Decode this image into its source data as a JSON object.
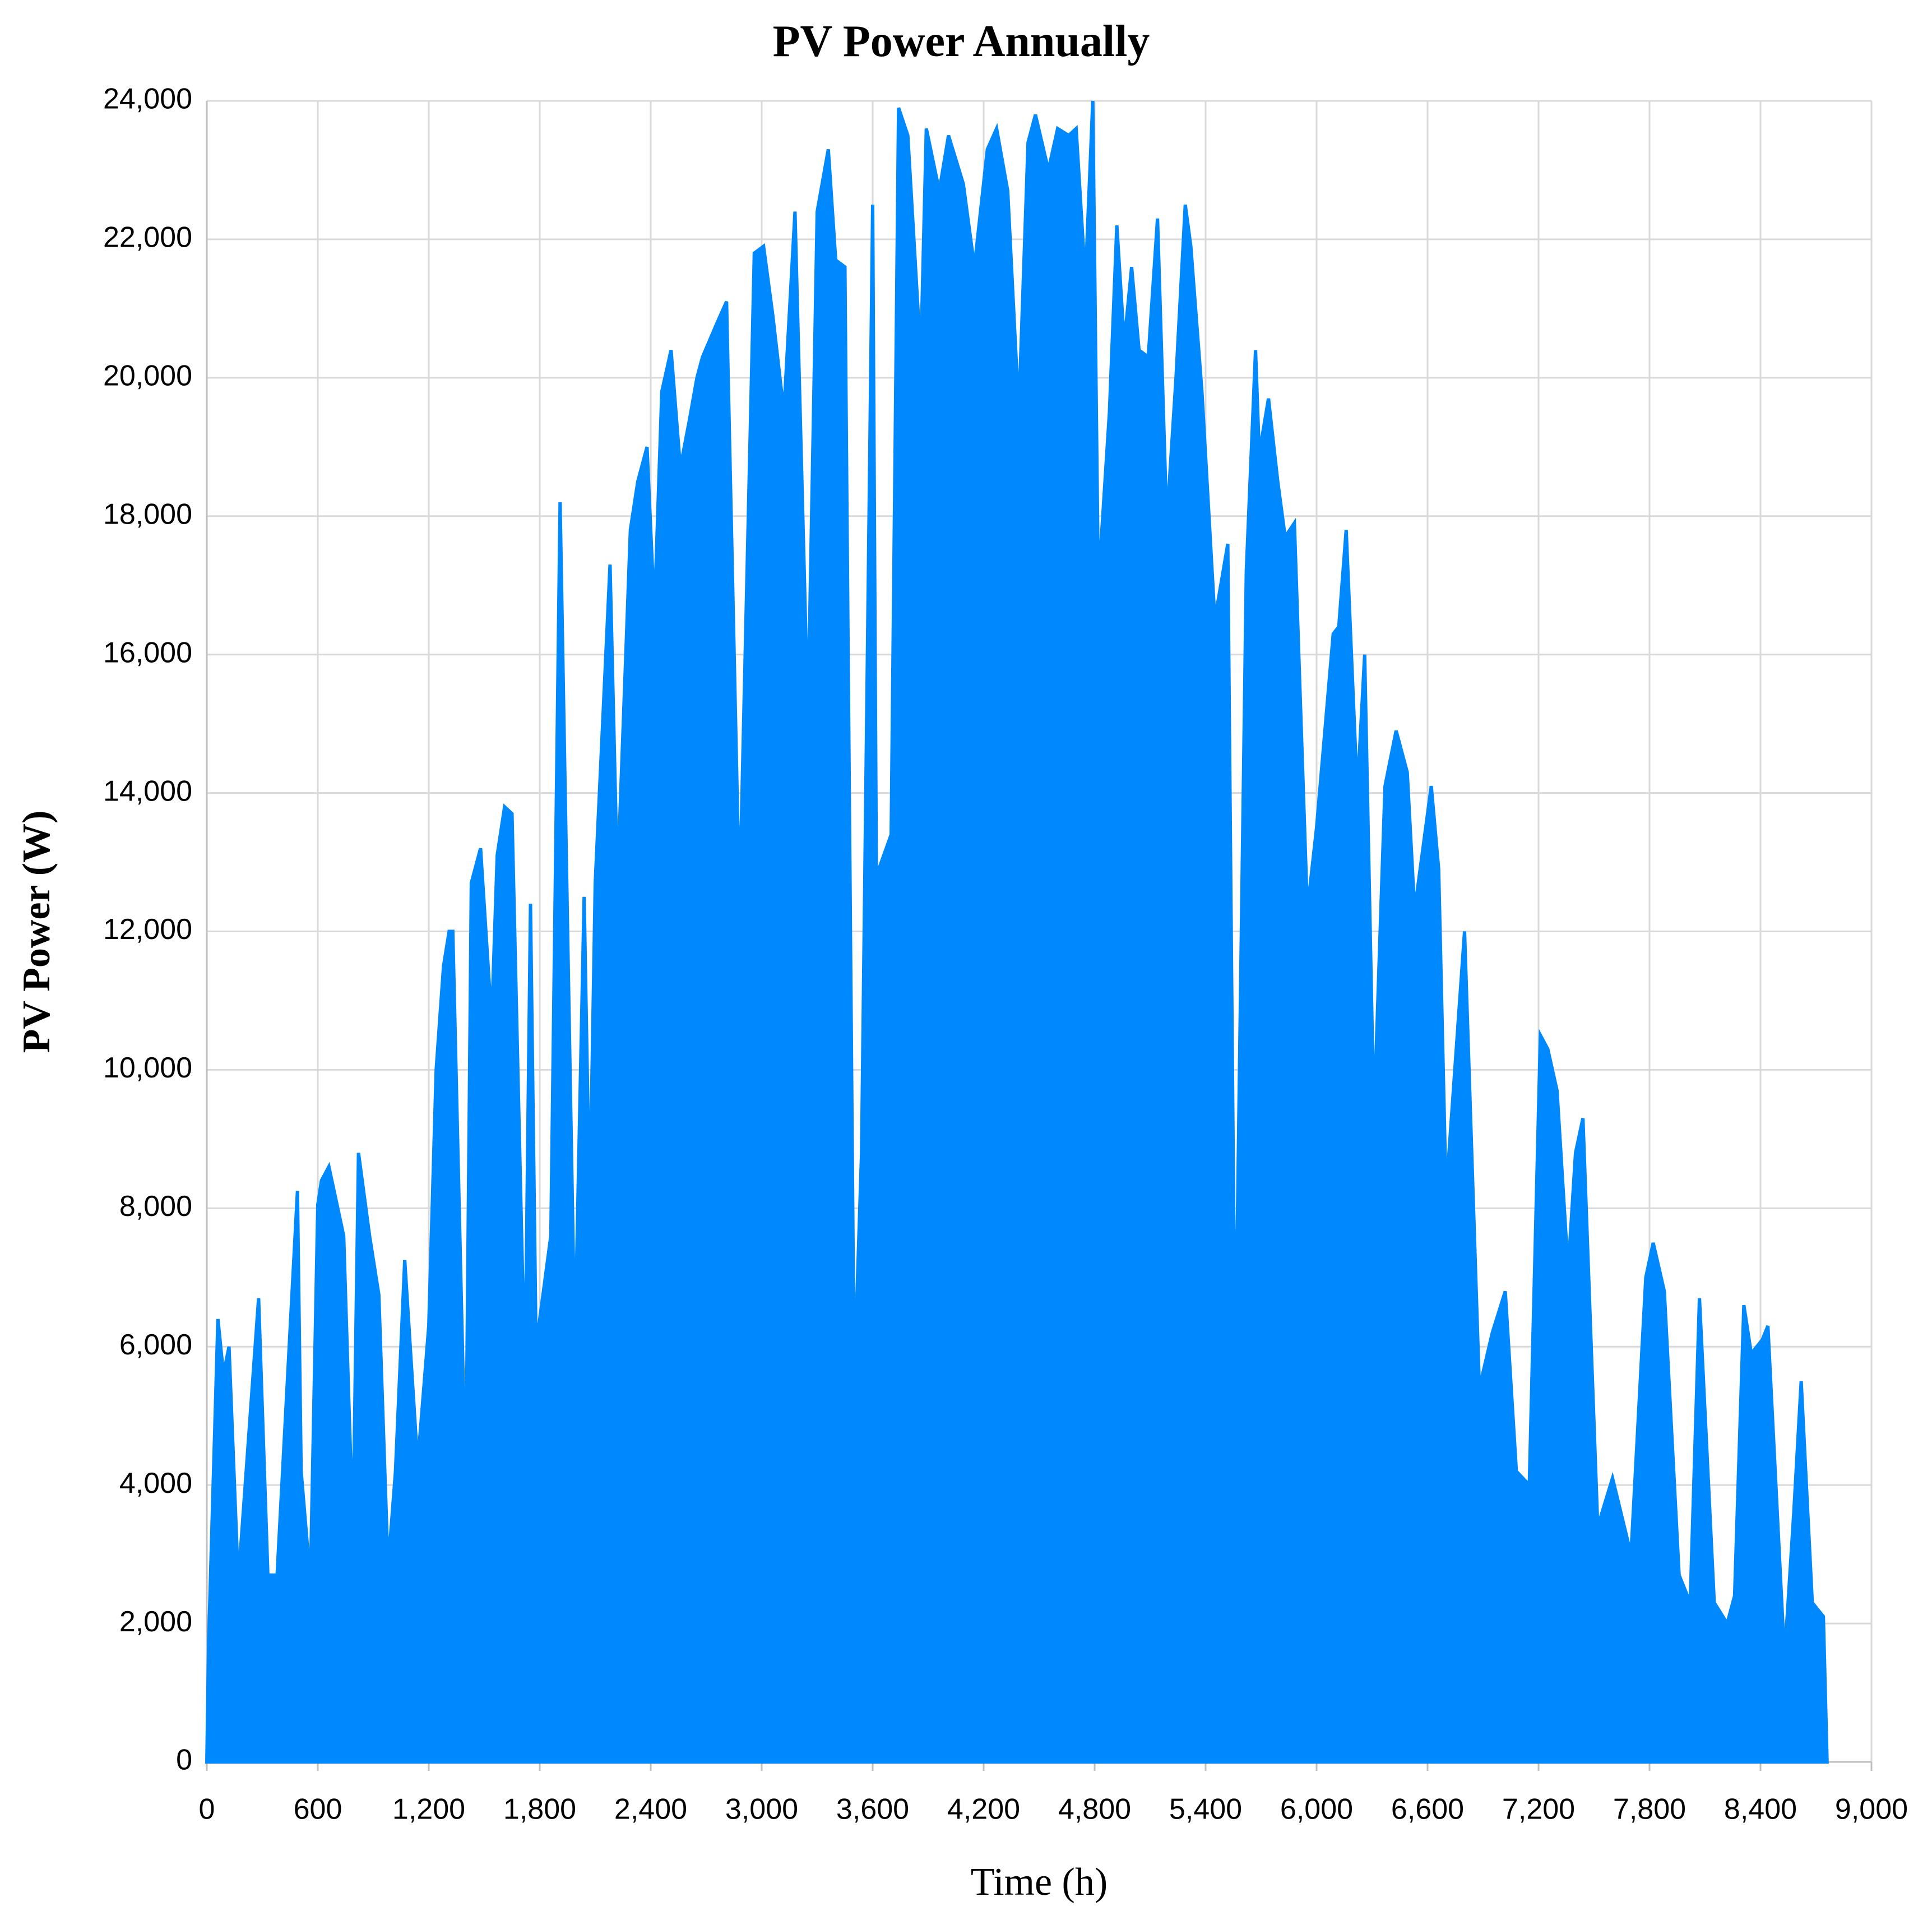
{
  "chart_data": {
    "type": "area",
    "title": "PV Power Annually",
    "x_label": "Time (h)",
    "y_label": "PV Power (W)",
    "color": "#0088ff",
    "grid": true,
    "xlim": [
      0,
      9000
    ],
    "xticks": [
      0,
      600,
      {
        "value": 1200,
        "label": "1,200"
      },
      {
        "value": 1800,
        "label": "1,800"
      },
      {
        "value": 2400,
        "label": "2,400"
      },
      {
        "value": 3000,
        "label": "3,000"
      },
      {
        "value": 3600,
        "label": "3,600"
      },
      {
        "value": 4200,
        "label": "4,200"
      },
      {
        "value": 4800,
        "label": "4,800"
      },
      {
        "value": 5400,
        "label": "5,400"
      },
      {
        "value": 6000,
        "label": "6,000"
      },
      {
        "value": 6600,
        "label": "6,600"
      },
      {
        "value": 7200,
        "label": "7,200"
      },
      {
        "value": 7800,
        "label": "7,800"
      },
      {
        "value": 8400,
        "label": "8,400"
      },
      {
        "value": 9000,
        "label": "9,000"
      }
    ],
    "ylim": [
      0,
      24000
    ],
    "yticks": [
      0,
      {
        "value": 2000,
        "label": "2,000"
      },
      {
        "value": 4000,
        "label": "4,000"
      },
      {
        "value": 6000,
        "label": "6,000"
      },
      {
        "value": 8000,
        "label": "8,000"
      },
      {
        "value": 10000,
        "label": "10,000"
      },
      {
        "value": 12000,
        "label": "12,000"
      },
      {
        "value": 14000,
        "label": "14,000"
      },
      {
        "value": 16000,
        "label": "16,000"
      },
      {
        "value": 18000,
        "label": "18,000"
      },
      {
        "value": 20000,
        "label": "20,000"
      },
      {
        "value": 22000,
        "label": "22,000"
      },
      {
        "value": 24000,
        "label": "24,000"
      }
    ],
    "x": [
      0,
      10,
      60,
      90,
      120,
      170,
      280,
      330,
      380,
      490,
      510,
      560,
      600,
      620,
      660,
      740,
      790,
      820,
      880,
      930,
      980,
      1020,
      1070,
      1140,
      1200,
      1240,
      1280,
      1310,
      1330,
      1400,
      1430,
      1480,
      1540,
      1570,
      1610,
      1650,
      1720,
      1750,
      1780,
      1860,
      1910,
      1990,
      2040,
      2070,
      2100,
      2180,
      2220,
      2290,
      2330,
      2380,
      2420,
      2460,
      2510,
      2560,
      2610,
      2650,
      2680,
      2760,
      2810,
      2880,
      2960,
      3010,
      3060,
      3120,
      3180,
      3250,
      3300,
      3360,
      3400,
      3450,
      3500,
      3540,
      3600,
      3620,
      3700,
      3740,
      3790,
      3860,
      3890,
      3960,
      4010,
      4090,
      4150,
      4220,
      4270,
      4330,
      4390,
      4440,
      4480,
      4550,
      4600,
      4660,
      4700,
      4750,
      4790,
      4820,
      4880,
      4920,
      4960,
      5000,
      5040,
      5090,
      5140,
      5190,
      5240,
      5290,
      5320,
      5380,
      5450,
      5520,
      5560,
      5620,
      5670,
      5690,
      5740,
      5790,
      5830,
      5880,
      5950,
      6000,
      6090,
      6120,
      6160,
      6220,
      6260,
      6310,
      6370,
      6430,
      6490,
      6530,
      6620,
      6660,
      6700,
      6800,
      6880,
      6950,
      7020,
      7080,
      7150,
      7210,
      7250,
      7300,
      7360,
      7400,
      7440,
      7520,
      7600,
      7700,
      7780,
      7820,
      7880,
      7960,
      8020,
      8070,
      8150,
      8220,
      8260,
      8310,
      8350,
      8410,
      8440,
      8530,
      8580,
      8620,
      8680,
      8740,
      8760
    ],
    "values": [
      0,
      1750,
      6400,
      5600,
      6000,
      2600,
      6700,
      2700,
      2700,
      8250,
      4200,
      2600,
      8050,
      8400,
      8600,
      7600,
      3300,
      8800,
      7600,
      6750,
      2800,
      4200,
      7250,
      4300,
      6300,
      10000,
      11500,
      12000,
      12000,
      3900,
      12700,
      13200,
      10700,
      13100,
      13800,
      13700,
      5500,
      12400,
      6000,
      7600,
      18200,
      6000,
      12500,
      8000,
      12700,
      17300,
      12700,
      17800,
      18500,
      19000,
      16600,
      19800,
      20400,
      18700,
      19400,
      20000,
      20300,
      20800,
      21100,
      12400,
      21800,
      21900,
      20900,
      19500,
      22400,
      15100,
      22400,
      23300,
      21700,
      21600,
      5500,
      8800,
      22500,
      12800,
      13400,
      23900,
      23500,
      20300,
      23600,
      22700,
      23500,
      22800,
      21600,
      23300,
      23600,
      22700,
      19500,
      23400,
      23800,
      23000,
      23600,
      23500,
      23600,
      21400,
      24000,
      17000,
      19500,
      22200,
      20500,
      21600,
      20400,
      20300,
      22300,
      17900,
      20000,
      22500,
      21900,
      19800,
      16500,
      17600,
      5500,
      17200,
      20400,
      18900,
      19700,
      18500,
      17700,
      17900,
      12300,
      13500,
      16300,
      16400,
      17800,
      14000,
      16000,
      9300,
      14100,
      14900,
      14300,
      12300,
      14100,
      12900,
      8200,
      12000,
      5400,
      6200,
      6800,
      4200,
      4000,
      10500,
      10300,
      9700,
      7100,
      8800,
      9300,
      3400,
      4100,
      3000,
      7000,
      7500,
      6800,
      2700,
      2300,
      6700,
      2300,
      2000,
      2400,
      6600,
      5900,
      6100,
      6300,
      1500,
      3600,
      5500,
      2300,
      2100,
      0
    ]
  }
}
